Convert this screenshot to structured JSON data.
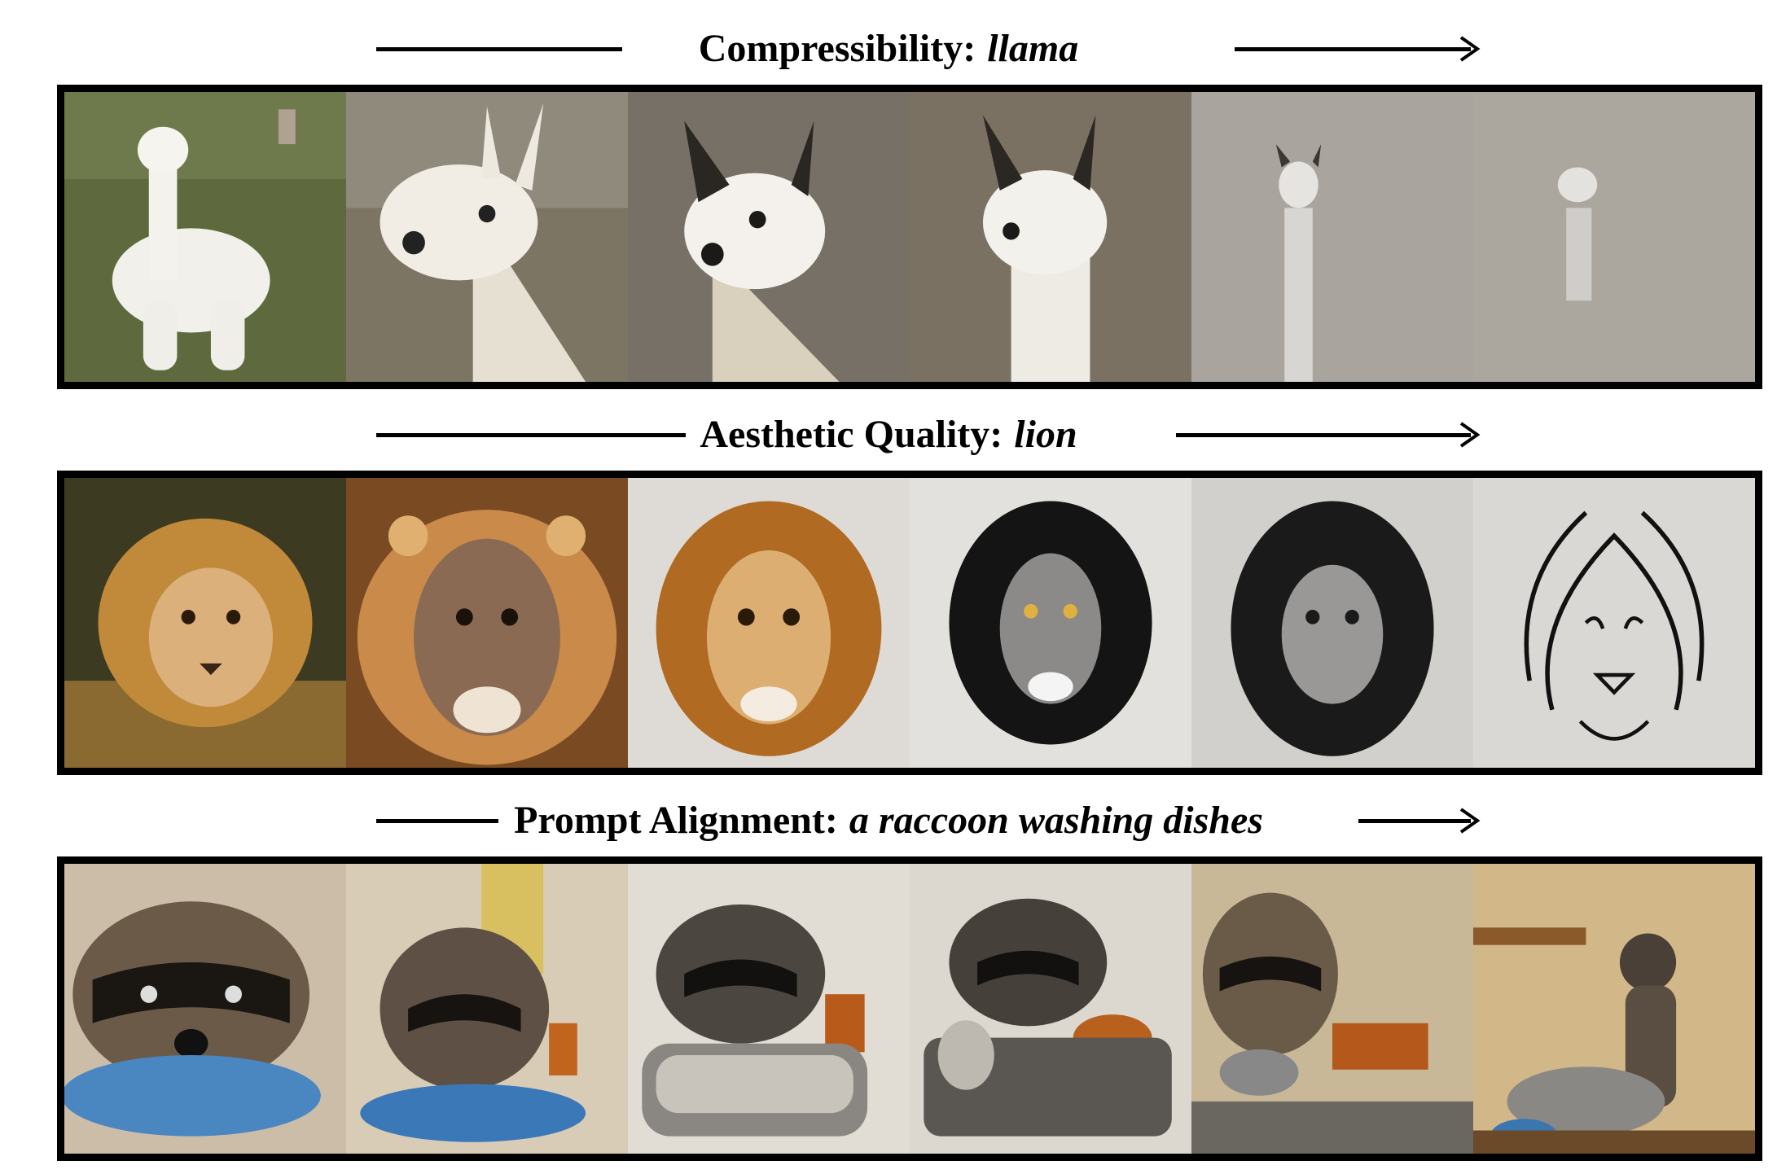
{
  "rows": [
    {
      "metric": "Compressibility:",
      "prompt": "llama",
      "images": [
        {
          "name": "llama-sample-1",
          "description": "white llama standing in green field"
        },
        {
          "name": "llama-sample-2",
          "description": "close-up fluffy llama head"
        },
        {
          "name": "llama-sample-3",
          "description": "llama head on grey background"
        },
        {
          "name": "llama-sample-4",
          "description": "smooth llama head on grey background"
        },
        {
          "name": "llama-sample-5",
          "description": "minimal small llama on flat grey"
        },
        {
          "name": "llama-sample-6",
          "description": "faint llama silhouette on flat grey"
        }
      ]
    },
    {
      "metric": "Aesthetic Quality:",
      "prompt": "lion",
      "images": [
        {
          "name": "lion-sample-1",
          "description": "photo of lion lying in grass"
        },
        {
          "name": "lion-sample-2",
          "description": "painted lion face"
        },
        {
          "name": "lion-sample-3",
          "description": "illustrated golden lion head"
        },
        {
          "name": "lion-sample-4",
          "description": "black and white lion drawing"
        },
        {
          "name": "lion-sample-5",
          "description": "stylized black lion with grey face"
        },
        {
          "name": "lion-sample-6",
          "description": "minimal line drawing of lion"
        }
      ]
    },
    {
      "metric": "Prompt Alignment:",
      "prompt": "a raccoon washing dishes",
      "images": [
        {
          "name": "raccoon-sample-1",
          "description": "raccoon face over blue bowl"
        },
        {
          "name": "raccoon-sample-2",
          "description": "raccoon at blue basin in kitchen"
        },
        {
          "name": "raccoon-sample-3",
          "description": "sketched raccoon in sink"
        },
        {
          "name": "raccoon-sample-4",
          "description": "sketched raccoon washing plates"
        },
        {
          "name": "raccoon-sample-5",
          "description": "raccoon holding dish at sink"
        },
        {
          "name": "raccoon-sample-6",
          "description": "raccoon standing at cluttered sink"
        }
      ]
    }
  ]
}
